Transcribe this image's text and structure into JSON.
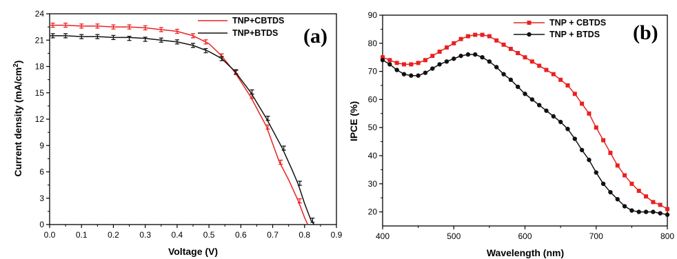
{
  "chart_data": [
    {
      "panel_label": "(a)",
      "type": "line",
      "xlabel": "Voltage (V)",
      "ylabel": "Current density (mA/cm",
      "ylabel_sup": "2",
      "ylabel_end": ")",
      "xlim": [
        0.0,
        0.9
      ],
      "ylim": [
        0,
        24
      ],
      "xticks": [
        "0.0",
        "0.1",
        "0.2",
        "0.3",
        "0.4",
        "0.5",
        "0.6",
        "0.7",
        "0.8",
        "0.9"
      ],
      "yticks": [
        "0",
        "3",
        "6",
        "9",
        "12",
        "15",
        "18",
        "21",
        "24"
      ],
      "legend_position": "top-right",
      "grid": false,
      "series": [
        {
          "name": "TNP+CBTDS",
          "color": "#e8211f",
          "marker": "error-bar",
          "x": [
            0.0,
            0.05,
            0.1,
            0.15,
            0.2,
            0.25,
            0.3,
            0.35,
            0.4,
            0.45,
            0.5,
            0.54,
            0.58,
            0.63,
            0.68,
            0.72,
            0.75,
            0.78,
            0.8,
            0.81
          ],
          "y": [
            22.7,
            22.7,
            22.6,
            22.6,
            22.5,
            22.5,
            22.4,
            22.2,
            22.0,
            21.5,
            20.6,
            19.2,
            17.4,
            14.6,
            11.2,
            7.2,
            5.1,
            2.7,
            0.8,
            0.0
          ],
          "error_x": [
            0.01,
            0.05,
            0.1,
            0.15,
            0.2,
            0.25,
            0.3,
            0.35,
            0.4,
            0.45,
            0.49,
            0.54,
            0.585,
            0.635,
            0.685,
            0.725,
            0.785
          ],
          "error_y": [
            22.7,
            22.7,
            22.6,
            22.6,
            22.5,
            22.5,
            22.4,
            22.2,
            22.0,
            21.5,
            20.8,
            19.2,
            17.3,
            14.6,
            11.1,
            7.1,
            2.7
          ]
        },
        {
          "name": "TNP+BTDS",
          "color": "#111111",
          "marker": "error-bar",
          "x": [
            0.0,
            0.05,
            0.1,
            0.15,
            0.2,
            0.25,
            0.3,
            0.35,
            0.4,
            0.45,
            0.5,
            0.54,
            0.58,
            0.63,
            0.68,
            0.73,
            0.76,
            0.78,
            0.8,
            0.82,
            0.83
          ],
          "y": [
            21.5,
            21.5,
            21.4,
            21.4,
            21.3,
            21.3,
            21.2,
            21.0,
            20.8,
            20.4,
            19.7,
            18.9,
            17.5,
            15.1,
            12.1,
            8.7,
            6.3,
            4.6,
            2.4,
            0.5,
            0.0
          ],
          "error_x": [
            0.01,
            0.05,
            0.1,
            0.15,
            0.2,
            0.25,
            0.3,
            0.35,
            0.4,
            0.45,
            0.49,
            0.54,
            0.585,
            0.635,
            0.685,
            0.735,
            0.785,
            0.825
          ],
          "error_y": [
            21.5,
            21.5,
            21.4,
            21.4,
            21.3,
            21.2,
            21.1,
            21.0,
            20.8,
            20.4,
            19.8,
            18.9,
            17.4,
            15.1,
            12.1,
            8.7,
            4.7,
            0.5
          ]
        }
      ]
    },
    {
      "panel_label": "(b)",
      "type": "line",
      "xlabel": "Wavelength (nm)",
      "ylabel": "IPCE (%)",
      "xlim": [
        400,
        800
      ],
      "ylim": [
        15,
        90
      ],
      "xticks": [
        "400",
        "500",
        "600",
        "700",
        "800"
      ],
      "yticks": [
        "20",
        "30",
        "40",
        "50",
        "60",
        "70",
        "80",
        "90"
      ],
      "legend_position": "top-right",
      "grid": false,
      "series": [
        {
          "name": "TNP + CBTDS",
          "color": "#e8211f",
          "marker": "square",
          "x": [
            400,
            410,
            420,
            430,
            440,
            450,
            460,
            470,
            480,
            490,
            500,
            510,
            520,
            530,
            540,
            550,
            560,
            570,
            580,
            590,
            600,
            610,
            620,
            630,
            640,
            650,
            660,
            670,
            680,
            690,
            700,
            710,
            720,
            730,
            740,
            750,
            760,
            770,
            780,
            790,
            800
          ],
          "y": [
            75,
            74,
            73,
            72.5,
            72.5,
            73,
            74,
            75.5,
            77,
            78.5,
            80,
            81.5,
            82.5,
            83,
            83,
            82.5,
            81,
            79.5,
            78,
            76.5,
            75,
            73.5,
            72,
            70.5,
            69,
            67,
            65,
            62,
            58.5,
            55,
            50,
            45.5,
            41,
            36.5,
            33,
            30,
            27.5,
            25.5,
            23.5,
            22.5,
            21
          ]
        },
        {
          "name": "TNP + BTDS",
          "color": "#111111",
          "marker": "circle",
          "x": [
            400,
            410,
            420,
            430,
            440,
            450,
            460,
            470,
            480,
            490,
            500,
            510,
            520,
            530,
            540,
            550,
            560,
            570,
            580,
            590,
            600,
            610,
            620,
            630,
            640,
            650,
            660,
            670,
            680,
            690,
            700,
            710,
            720,
            730,
            740,
            750,
            760,
            770,
            780,
            790,
            800
          ],
          "y": [
            74,
            72.5,
            70.5,
            69,
            68.5,
            68.5,
            69.5,
            71,
            72.5,
            73.5,
            74.5,
            75.5,
            76,
            76,
            75,
            73.5,
            71.5,
            69,
            67,
            64.5,
            62,
            60,
            58,
            56,
            54,
            52,
            49.5,
            46,
            42,
            38.5,
            34,
            30,
            27,
            24.5,
            22,
            20.5,
            20,
            20,
            20,
            19.5,
            19
          ]
        }
      ]
    }
  ]
}
